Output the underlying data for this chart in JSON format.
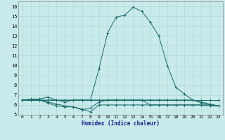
{
  "xlabel": "Humidex (Indice chaleur)",
  "xlim": [
    -0.5,
    23.5
  ],
  "ylim": [
    5,
    16.5
  ],
  "yticks": [
    5,
    6,
    7,
    8,
    9,
    10,
    11,
    12,
    13,
    14,
    15,
    16
  ],
  "xticks": [
    0,
    1,
    2,
    3,
    4,
    5,
    6,
    7,
    8,
    9,
    10,
    11,
    12,
    13,
    14,
    15,
    16,
    17,
    18,
    19,
    20,
    21,
    22,
    23
  ],
  "bg_color": "#c8eaea",
  "line_color": "#1a6b6b",
  "grid_color": "#aad4d4",
  "lines": [
    {
      "x": [
        0,
        1,
        2,
        3,
        4,
        5,
        6,
        7,
        8,
        9,
        10,
        11,
        12,
        13,
        14,
        15,
        16,
        17,
        18,
        19,
        20,
        21,
        22,
        23
      ],
      "y": [
        6.5,
        6.6,
        6.6,
        6.8,
        6.5,
        6.3,
        6.5,
        6.5,
        6.5,
        9.7,
        13.3,
        14.9,
        15.1,
        15.9,
        15.5,
        14.4,
        13.0,
        10.0,
        7.8,
        7.1,
        6.5,
        6.3,
        6.1,
        5.9
      ]
    },
    {
      "x": [
        0,
        1,
        2,
        3,
        4,
        5,
        6,
        7,
        8,
        9,
        10,
        11,
        12,
        13,
        14,
        15,
        16,
        17,
        18,
        19,
        20,
        21,
        22,
        23
      ],
      "y": [
        6.5,
        6.5,
        6.5,
        6.5,
        6.5,
        6.5,
        6.5,
        6.5,
        6.5,
        6.5,
        6.5,
        6.5,
        6.5,
        6.5,
        6.5,
        6.5,
        6.5,
        6.5,
        6.5,
        6.5,
        6.5,
        6.5,
        6.5,
        6.5
      ]
    },
    {
      "x": [
        0,
        1,
        2,
        3,
        4,
        5,
        6,
        7,
        8,
        9,
        10,
        11,
        12,
        13,
        14,
        15,
        16,
        17,
        18,
        19,
        20,
        21,
        22,
        23
      ],
      "y": [
        6.5,
        6.5,
        6.5,
        6.3,
        6.1,
        5.9,
        5.8,
        5.6,
        5.3,
        6.0,
        6.0,
        6.0,
        6.0,
        6.0,
        6.0,
        6.0,
        6.0,
        6.0,
        6.0,
        6.0,
        6.0,
        6.0,
        6.0,
        5.9
      ]
    },
    {
      "x": [
        0,
        1,
        2,
        3,
        4,
        5,
        6,
        7,
        8,
        9,
        10,
        11,
        12,
        13,
        14,
        15,
        16,
        17,
        18,
        19,
        20,
        21,
        22,
        23
      ],
      "y": [
        6.5,
        6.5,
        6.5,
        6.2,
        5.9,
        5.8,
        5.8,
        5.5,
        5.7,
        6.3,
        6.5,
        6.5,
        6.5,
        6.5,
        6.5,
        6.5,
        6.5,
        6.5,
        6.5,
        6.5,
        6.5,
        6.2,
        6.0,
        5.9
      ]
    },
    {
      "x": [
        0,
        1,
        2,
        3,
        4,
        5,
        6,
        7,
        8,
        9,
        10,
        11,
        12,
        13,
        14,
        15,
        16,
        17,
        18,
        19,
        20,
        21,
        22,
        23
      ],
      "y": [
        6.5,
        6.5,
        6.5,
        6.5,
        6.5,
        6.5,
        6.5,
        6.5,
        6.5,
        6.5,
        6.5,
        6.5,
        6.5,
        6.5,
        6.5,
        6.0,
        6.0,
        6.0,
        6.0,
        6.0,
        6.0,
        6.0,
        5.9,
        5.9
      ]
    }
  ]
}
